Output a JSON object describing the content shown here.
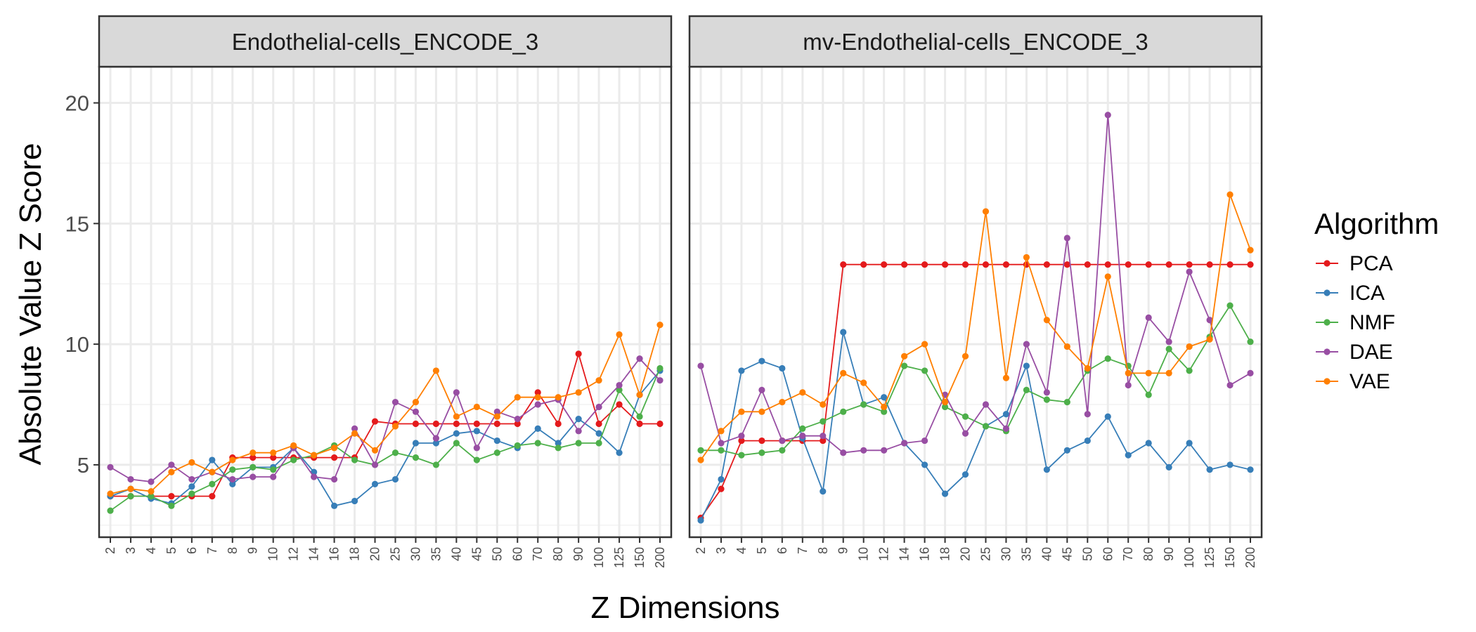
{
  "chart_data": {
    "type": "line",
    "ylabel": "Absolute Value Z Score",
    "xlabel": "Z Dimensions",
    "ylim": [
      2,
      21.5
    ],
    "yticks": [
      5,
      10,
      15,
      20
    ],
    "x": [
      "2",
      "3",
      "4",
      "5",
      "6",
      "7",
      "8",
      "9",
      "10",
      "12",
      "14",
      "16",
      "18",
      "20",
      "25",
      "30",
      "35",
      "40",
      "45",
      "50",
      "60",
      "70",
      "80",
      "90",
      "100",
      "125",
      "150",
      "200"
    ],
    "grid": true,
    "legend": {
      "title": "Algorithm",
      "position": "right",
      "entries": [
        "PCA",
        "ICA",
        "NMF",
        "DAE",
        "VAE"
      ]
    },
    "colors": {
      "PCA": "#e41a1c",
      "ICA": "#377eb8",
      "NMF": "#4daf4a",
      "DAE": "#984ea3",
      "VAE": "#ff7f00"
    },
    "panels": [
      {
        "title": "Endothelial-cells_ENCODE_3",
        "series": [
          {
            "name": "PCA",
            "values": [
              3.7,
              3.7,
              3.7,
              3.7,
              3.7,
              3.7,
              5.3,
              5.3,
              5.3,
              5.3,
              5.3,
              5.3,
              5.3,
              6.8,
              6.7,
              6.7,
              6.7,
              6.7,
              6.7,
              6.7,
              6.7,
              8.0,
              6.7,
              9.6,
              6.7,
              7.5,
              6.7,
              6.7
            ]
          },
          {
            "name": "ICA",
            "values": [
              3.7,
              4.0,
              3.6,
              3.4,
              4.1,
              5.2,
              4.2,
              4.9,
              4.9,
              5.7,
              4.7,
              3.3,
              3.5,
              4.2,
              4.4,
              5.9,
              5.9,
              6.3,
              6.4,
              6.0,
              5.7,
              6.5,
              5.9,
              6.9,
              6.3,
              5.5,
              7.9,
              8.9
            ]
          },
          {
            "name": "NMF",
            "values": [
              3.1,
              3.7,
              3.7,
              3.3,
              3.8,
              4.2,
              4.8,
              4.9,
              4.8,
              5.2,
              5.4,
              5.8,
              5.2,
              5.0,
              5.5,
              5.3,
              5.0,
              5.9,
              5.2,
              5.5,
              5.8,
              5.9,
              5.7,
              5.9,
              5.9,
              8.1,
              7.0,
              9.0
            ]
          },
          {
            "name": "DAE",
            "values": [
              4.9,
              4.4,
              4.3,
              5.0,
              4.4,
              4.7,
              4.4,
              4.5,
              4.5,
              5.7,
              4.5,
              4.4,
              6.5,
              5.0,
              7.6,
              7.2,
              6.1,
              8.0,
              5.7,
              7.2,
              6.9,
              7.5,
              7.7,
              6.4,
              7.4,
              8.3,
              9.4,
              8.5
            ]
          },
          {
            "name": "VAE",
            "values": [
              3.8,
              4.0,
              3.9,
              4.7,
              5.1,
              4.7,
              5.2,
              5.5,
              5.5,
              5.8,
              5.4,
              5.7,
              6.3,
              5.6,
              6.6,
              7.6,
              8.9,
              7.0,
              7.4,
              7.0,
              7.8,
              7.8,
              7.8,
              8.0,
              8.5,
              10.4,
              7.9,
              10.8
            ]
          }
        ]
      },
      {
        "title": "mv-Endothelial-cells_ENCODE_3",
        "series": [
          {
            "name": "PCA",
            "values": [
              2.8,
              4.0,
              6.0,
              6.0,
              6.0,
              6.0,
              6.0,
              13.3,
              13.3,
              13.3,
              13.3,
              13.3,
              13.3,
              13.3,
              13.3,
              13.3,
              13.3,
              13.3,
              13.3,
              13.3,
              13.3,
              13.3,
              13.3,
              13.3,
              13.3,
              13.3,
              13.3,
              13.3
            ]
          },
          {
            "name": "ICA",
            "values": [
              2.7,
              4.4,
              8.9,
              9.3,
              9.0,
              6.1,
              3.9,
              10.5,
              7.5,
              7.8,
              5.9,
              5.0,
              3.8,
              4.6,
              6.6,
              7.1,
              9.1,
              4.8,
              5.6,
              6.0,
              7.0,
              5.4,
              5.9,
              4.9,
              5.9,
              4.8,
              5.0,
              4.8
            ]
          },
          {
            "name": "NMF",
            "values": [
              5.6,
              5.6,
              5.4,
              5.5,
              5.6,
              6.5,
              6.8,
              7.2,
              7.5,
              7.2,
              9.1,
              8.9,
              7.4,
              7.0,
              6.6,
              6.4,
              8.1,
              7.7,
              7.6,
              8.9,
              9.4,
              9.1,
              7.9,
              9.8,
              8.9,
              10.3,
              11.6,
              10.1
            ]
          },
          {
            "name": "DAE",
            "values": [
              9.1,
              5.9,
              6.2,
              8.1,
              6.0,
              6.2,
              6.2,
              5.5,
              5.6,
              5.6,
              5.9,
              6.0,
              7.9,
              6.3,
              7.5,
              6.5,
              10.0,
              8.0,
              14.4,
              7.1,
              19.5,
              8.3,
              11.1,
              10.1,
              13.0,
              11.0,
              8.3,
              8.8
            ]
          },
          {
            "name": "VAE",
            "values": [
              5.2,
              6.4,
              7.2,
              7.2,
              7.6,
              8.0,
              7.5,
              8.8,
              8.4,
              7.4,
              9.5,
              10.0,
              7.6,
              9.5,
              15.5,
              8.6,
              13.6,
              11.0,
              9.9,
              9.0,
              12.8,
              8.8,
              8.8,
              8.8,
              9.9,
              10.2,
              16.2,
              13.9
            ]
          }
        ]
      }
    ]
  }
}
